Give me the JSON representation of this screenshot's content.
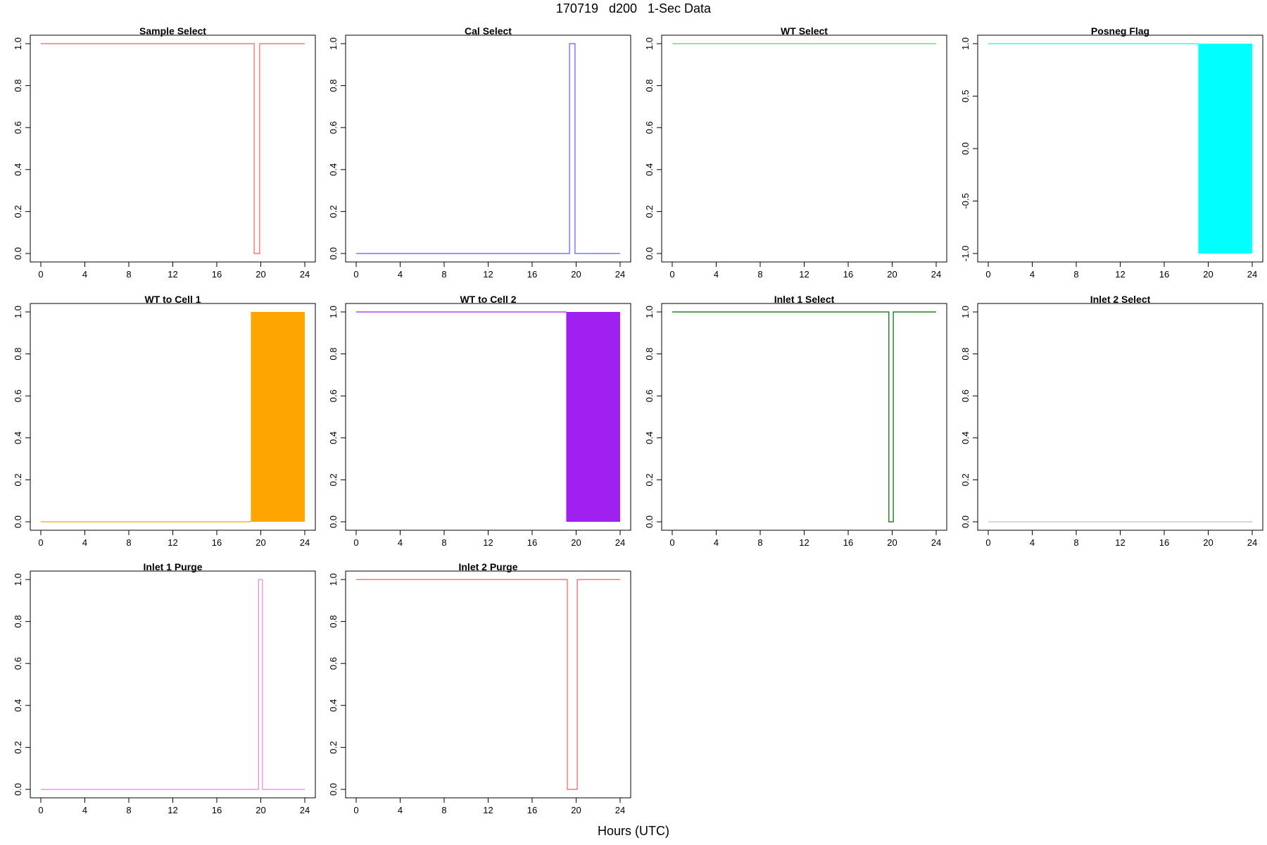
{
  "title": "170719   d200   1-Sec Data",
  "xlabel": "Hours (UTC)",
  "chart_data": [
    {
      "type": "line",
      "title": "Sample Select",
      "color": "#ff5a5a",
      "xlim": [
        0,
        24
      ],
      "ylim": [
        0,
        1
      ],
      "xticks": [
        "0",
        "4",
        "8",
        "12",
        "16",
        "20",
        "24"
      ],
      "yticks": [
        "0.0",
        "0.2",
        "0.4",
        "0.6",
        "0.8",
        "1.0"
      ],
      "ytick_values": [
        0,
        0.2,
        0.4,
        0.6,
        0.8,
        1.0
      ],
      "x": [
        0,
        19.4,
        19.4,
        19.9,
        19.9,
        24
      ],
      "y": [
        1,
        1,
        0,
        0,
        1,
        1
      ]
    },
    {
      "type": "line",
      "title": "Cal Select",
      "color": "#5a5aff",
      "xlim": [
        0,
        24
      ],
      "ylim": [
        0,
        1
      ],
      "xticks": [
        "0",
        "4",
        "8",
        "12",
        "16",
        "20",
        "24"
      ],
      "yticks": [
        "0.0",
        "0.2",
        "0.4",
        "0.6",
        "0.8",
        "1.0"
      ],
      "ytick_values": [
        0,
        0.2,
        0.4,
        0.6,
        0.8,
        1.0
      ],
      "x": [
        0,
        19.4,
        19.4,
        19.9,
        19.9,
        24
      ],
      "y": [
        0,
        0,
        1,
        1,
        0,
        0
      ]
    },
    {
      "type": "line",
      "title": "WT Select",
      "color": "#5ad25a",
      "xlim": [
        0,
        24
      ],
      "ylim": [
        0,
        1
      ],
      "xticks": [
        "0",
        "4",
        "8",
        "12",
        "16",
        "20",
        "24"
      ],
      "yticks": [
        "0.0",
        "0.2",
        "0.4",
        "0.6",
        "0.8",
        "1.0"
      ],
      "ytick_values": [
        0,
        0.2,
        0.4,
        0.6,
        0.8,
        1.0
      ],
      "x": [
        0,
        24
      ],
      "y": [
        1,
        1
      ]
    },
    {
      "type": "area",
      "title": "Posneg Flag",
      "color": "#00ffff",
      "xlim": [
        0,
        24
      ],
      "ylim": [
        -1,
        1
      ],
      "xticks": [
        "0",
        "4",
        "8",
        "12",
        "16",
        "20",
        "24"
      ],
      "yticks": [
        "-1.0",
        "-0.5",
        "0.0",
        "0.5",
        "1.0"
      ],
      "ytick_values": [
        -1,
        -0.5,
        0,
        0.5,
        1
      ],
      "x": [
        0,
        19.1
      ],
      "y": [
        1,
        1
      ],
      "oscillation_band": {
        "x_start": 19.1,
        "x_end": 24,
        "y_min": -1,
        "y_max": 1
      }
    },
    {
      "type": "area",
      "title": "WT to Cell 1",
      "color": "#ffa500",
      "xlim": [
        0,
        24
      ],
      "ylim": [
        0,
        1
      ],
      "xticks": [
        "0",
        "4",
        "8",
        "12",
        "16",
        "20",
        "24"
      ],
      "yticks": [
        "0.0",
        "0.2",
        "0.4",
        "0.6",
        "0.8",
        "1.0"
      ],
      "ytick_values": [
        0,
        0.2,
        0.4,
        0.6,
        0.8,
        1.0
      ],
      "x": [
        0,
        19.1
      ],
      "y": [
        0,
        0
      ],
      "oscillation_band": {
        "x_start": 19.1,
        "x_end": 24,
        "y_min": 0,
        "y_max": 1
      }
    },
    {
      "type": "area",
      "title": "WT to Cell 2",
      "color": "#a020f0",
      "xlim": [
        0,
        24
      ],
      "ylim": [
        0,
        1
      ],
      "xticks": [
        "0",
        "4",
        "8",
        "12",
        "16",
        "20",
        "24"
      ],
      "yticks": [
        "0.0",
        "0.2",
        "0.4",
        "0.6",
        "0.8",
        "1.0"
      ],
      "ytick_values": [
        0,
        0.2,
        0.4,
        0.6,
        0.8,
        1.0
      ],
      "x": [
        0,
        19.1
      ],
      "y": [
        1,
        1
      ],
      "oscillation_band": {
        "x_start": 19.1,
        "x_end": 24,
        "y_min": 0,
        "y_max": 1
      }
    },
    {
      "type": "line",
      "title": "Inlet 1 Select",
      "color": "#006400",
      "xlim": [
        0,
        24
      ],
      "ylim": [
        0,
        1
      ],
      "xticks": [
        "0",
        "4",
        "8",
        "12",
        "16",
        "20",
        "24"
      ],
      "yticks": [
        "0.0",
        "0.2",
        "0.4",
        "0.6",
        "0.8",
        "1.0"
      ],
      "ytick_values": [
        0,
        0.2,
        0.4,
        0.6,
        0.8,
        1.0
      ],
      "x": [
        0,
        19.7,
        19.7,
        20.1,
        20.1,
        24
      ],
      "y": [
        1,
        1,
        0,
        0,
        1,
        1
      ]
    },
    {
      "type": "line",
      "title": "Inlet 2 Select",
      "color": "#bebebe",
      "xlim": [
        0,
        24
      ],
      "ylim": [
        0,
        1
      ],
      "xticks": [
        "0",
        "4",
        "8",
        "12",
        "16",
        "20",
        "24"
      ],
      "yticks": [
        "0.0",
        "0.2",
        "0.4",
        "0.6",
        "0.8",
        "1.0"
      ],
      "ytick_values": [
        0,
        0.2,
        0.4,
        0.6,
        0.8,
        1.0
      ],
      "x": [
        0,
        24
      ],
      "y": [
        0,
        0
      ]
    },
    {
      "type": "line",
      "title": "Inlet 1 Purge",
      "color": "#ee82ee",
      "xlim": [
        0,
        24
      ],
      "ylim": [
        0,
        1
      ],
      "xticks": [
        "0",
        "4",
        "8",
        "12",
        "16",
        "20",
        "24"
      ],
      "yticks": [
        "0.0",
        "0.2",
        "0.4",
        "0.6",
        "0.8",
        "1.0"
      ],
      "ytick_values": [
        0,
        0.2,
        0.4,
        0.6,
        0.8,
        1.0
      ],
      "x": [
        0,
        19.8,
        19.8,
        20.15,
        20.15,
        24
      ],
      "y": [
        0,
        0,
        1,
        1,
        0,
        0
      ]
    },
    {
      "type": "line",
      "title": "Inlet 2 Purge",
      "color": "#ff5a5a",
      "xlim": [
        0,
        24
      ],
      "ylim": [
        0,
        1
      ],
      "xticks": [
        "0",
        "4",
        "8",
        "12",
        "16",
        "20",
        "24"
      ],
      "yticks": [
        "0.0",
        "0.2",
        "0.4",
        "0.6",
        "0.8",
        "1.0"
      ],
      "ytick_values": [
        0,
        0.2,
        0.4,
        0.6,
        0.8,
        1.0
      ],
      "x": [
        0,
        19.2,
        19.2,
        20.1,
        20.1,
        24
      ],
      "y": [
        1,
        1,
        0,
        0,
        1,
        1
      ]
    }
  ]
}
